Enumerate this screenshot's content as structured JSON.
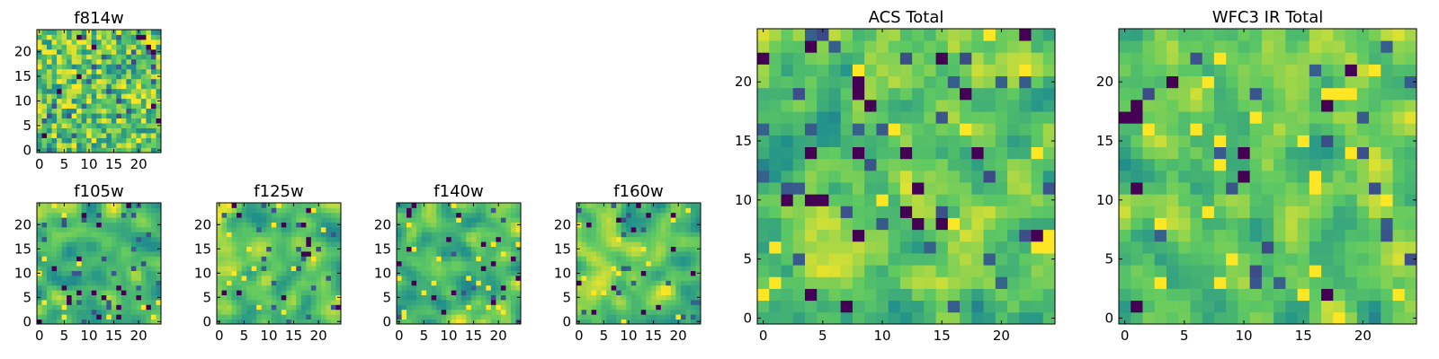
{
  "chart_data": [
    {
      "id": "f814w",
      "type": "heatmap",
      "title": "f814w",
      "grid_size": 25,
      "pattern": "noise",
      "seed": 11,
      "xlim": [
        -0.5,
        24.5
      ],
      "ylim": [
        -0.5,
        24.5
      ],
      "xticks": [
        0,
        5,
        10,
        15,
        20
      ],
      "yticks": [
        0,
        5,
        10,
        15,
        20
      ],
      "xlabel": "",
      "ylabel": ""
    },
    {
      "id": "f105w",
      "type": "heatmap",
      "title": "f105w",
      "grid_size": 25,
      "pattern": "smooth",
      "seed": 23,
      "xlim": [
        -0.5,
        24.5
      ],
      "ylim": [
        -0.5,
        24.5
      ],
      "xticks": [
        0,
        5,
        10,
        15,
        20
      ],
      "yticks": [
        0,
        5,
        10,
        15,
        20
      ],
      "xlabel": "",
      "ylabel": ""
    },
    {
      "id": "f125w",
      "type": "heatmap",
      "title": "f125w",
      "grid_size": 25,
      "pattern": "smooth",
      "seed": 37,
      "xlim": [
        -0.5,
        24.5
      ],
      "ylim": [
        -0.5,
        24.5
      ],
      "xticks": [
        0,
        5,
        10,
        15,
        20
      ],
      "yticks": [
        0,
        5,
        10,
        15,
        20
      ],
      "xlabel": "",
      "ylabel": ""
    },
    {
      "id": "f140w",
      "type": "heatmap",
      "title": "f140w",
      "grid_size": 25,
      "pattern": "smooth",
      "seed": 41,
      "xlim": [
        -0.5,
        24.5
      ],
      "ylim": [
        -0.5,
        24.5
      ],
      "xticks": [
        0,
        5,
        10,
        15,
        20
      ],
      "yticks": [
        0,
        5,
        10,
        15,
        20
      ],
      "xlabel": "",
      "ylabel": ""
    },
    {
      "id": "f160w",
      "type": "heatmap",
      "title": "f160w",
      "grid_size": 25,
      "pattern": "smooth",
      "seed": 53,
      "xlim": [
        -0.5,
        24.5
      ],
      "ylim": [
        -0.5,
        24.5
      ],
      "xticks": [
        0,
        5,
        10,
        15,
        20
      ],
      "yticks": [
        0,
        5,
        10,
        15,
        20
      ],
      "xlabel": "",
      "ylabel": ""
    },
    {
      "id": "acs-total",
      "type": "heatmap",
      "title": "ACS Total",
      "grid_size": 25,
      "pattern": "medium",
      "seed": 67,
      "xlim": [
        -0.5,
        24.5
      ],
      "ylim": [
        -0.5,
        24.5
      ],
      "xticks": [
        0,
        5,
        10,
        15,
        20
      ],
      "yticks": [
        0,
        5,
        10,
        15,
        20
      ],
      "xlabel": "",
      "ylabel": ""
    },
    {
      "id": "wfc3-ir-total",
      "type": "heatmap",
      "title": "WFC3 IR Total",
      "grid_size": 25,
      "pattern": "medium",
      "seed": 79,
      "xlim": [
        -0.5,
        24.5
      ],
      "ylim": [
        -0.5,
        24.5
      ],
      "xticks": [
        0,
        5,
        10,
        15,
        20
      ],
      "yticks": [
        0,
        5,
        10,
        15,
        20
      ],
      "xlabel": "",
      "ylabel": ""
    }
  ],
  "colormap": "viridis",
  "colors": {
    "viridis_stops": [
      "#440154",
      "#3b528b",
      "#21918c",
      "#5ec962",
      "#fde725"
    ],
    "axis": "#000000",
    "background": "#ffffff"
  }
}
